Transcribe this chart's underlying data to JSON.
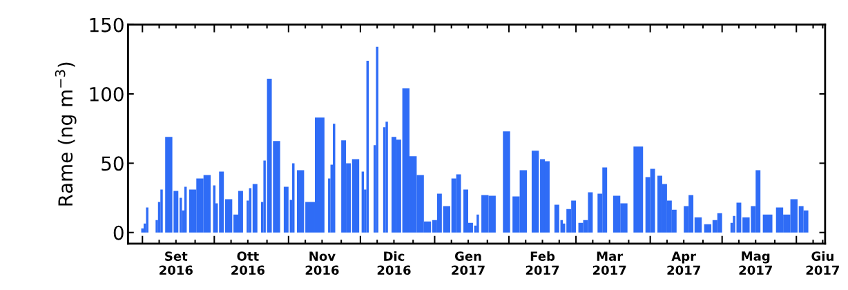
{
  "chart_data": {
    "type": "bar",
    "ylabel": "Rame (ng m$^{−3}$)",
    "color": "#2f6cf6",
    "x": [
      "2016-09-01",
      "2016-09-02",
      "2016-09-03",
      "2016-09-07",
      "2016-09-08",
      "2016-09-09",
      "2016-09-12",
      "2016-09-15",
      "2016-09-17",
      "2016-09-18",
      "2016-09-19",
      "2016-09-22",
      "2016-09-25",
      "2016-09-28",
      "2016-10-01",
      "2016-10-02",
      "2016-10-04",
      "2016-10-07",
      "2016-10-10",
      "2016-10-12",
      "2016-10-15",
      "2016-10-16",
      "2016-10-18",
      "2016-10-21",
      "2016-10-22",
      "2016-10-24",
      "2016-10-27",
      "2016-10-31",
      "2016-11-02",
      "2016-11-03",
      "2016-11-06",
      "2016-11-10",
      "2016-11-14",
      "2016-11-18",
      "2016-11-19",
      "2016-11-20",
      "2016-11-24",
      "2016-11-26",
      "2016-11-29",
      "2016-12-02",
      "2016-12-03",
      "2016-12-04",
      "2016-12-07",
      "2016-12-08",
      "2016-12-11",
      "2016-12-12",
      "2016-12-15",
      "2016-12-17",
      "2016-12-20",
      "2016-12-23",
      "2016-12-26",
      "2016-12-29",
      "2017-01-01",
      "2017-01-03",
      "2017-01-06",
      "2017-01-09",
      "2017-01-11",
      "2017-01-14",
      "2017-01-16",
      "2017-01-18",
      "2017-01-19",
      "2017-01-22",
      "2017-01-25",
      "2017-01-28",
      "2017-01-31",
      "2017-02-04",
      "2017-02-07",
      "2017-02-12",
      "2017-02-15",
      "2017-02-17",
      "2017-02-21",
      "2017-02-23",
      "2017-02-24",
      "2017-02-26",
      "2017-02-28",
      "2017-03-03",
      "2017-03-05",
      "2017-03-07",
      "2017-03-11",
      "2017-03-13",
      "2017-03-18",
      "2017-03-21",
      "2017-03-27",
      "2017-03-31",
      "2017-04-02",
      "2017-04-05",
      "2017-04-07",
      "2017-04-09",
      "2017-04-11",
      "2017-04-16",
      "2017-04-18",
      "2017-04-21",
      "2017-04-25",
      "2017-04-28",
      "2017-04-30",
      "2017-05-05",
      "2017-05-06",
      "2017-05-08",
      "2017-05-11",
      "2017-05-14",
      "2017-05-16",
      "2017-05-20",
      "2017-05-25",
      "2017-05-28",
      "2017-05-31",
      "2017-06-03",
      "2017-06-05"
    ],
    "values": [
      3,
      6.5,
      18,
      9,
      22,
      31,
      69,
      30,
      25,
      16,
      33,
      31,
      39,
      41.5,
      34,
      21,
      44,
      24,
      13,
      30,
      23,
      32,
      35,
      22,
      52,
      111,
      66,
      33,
      23.5,
      50,
      45,
      22,
      83,
      39,
      49,
      78.5,
      66.5,
      50,
      53,
      44,
      31,
      124,
      63,
      134,
      76,
      80,
      69,
      67,
      104,
      55,
      41.5,
      8,
      9,
      28,
      19,
      39,
      42,
      31,
      7,
      5,
      13,
      27,
      26.5,
      null,
      73,
      26,
      45,
      59,
      53,
      51.5,
      20,
      9,
      6.5,
      17,
      23,
      7,
      9,
      29,
      28,
      47,
      26.5,
      21,
      62,
      40,
      46,
      41,
      35,
      23,
      16.5,
      19,
      27,
      11,
      6,
      9,
      14,
      7,
      12,
      21.5,
      11,
      19,
      45,
      13,
      18,
      13,
      24,
      19,
      16
    ],
    "ylim": [
      -8,
      150
    ],
    "yticks": [
      0,
      50,
      100,
      150
    ],
    "xlim": [
      "2016-08-26",
      "2017-06-13"
    ],
    "xticks": [
      {
        "value": "2016-09-01",
        "label": null
      },
      {
        "value": "2016-09-08",
        "label": null
      },
      {
        "value": "2016-09-15",
        "label": "Set\n2016"
      },
      {
        "value": "2016-09-23",
        "label": null
      },
      {
        "value": "2016-10-01",
        "label": null
      },
      {
        "value": "2016-10-08",
        "label": null
      },
      {
        "value": "2016-10-15",
        "label": "Ott\n2016"
      },
      {
        "value": "2016-10-23",
        "label": null
      },
      {
        "value": "2016-11-01",
        "label": null
      },
      {
        "value": "2016-11-08",
        "label": null
      },
      {
        "value": "2016-11-15",
        "label": "Nov\n2016"
      },
      {
        "value": "2016-11-23",
        "label": null
      },
      {
        "value": "2016-12-01",
        "label": null
      },
      {
        "value": "2016-12-08",
        "label": null
      },
      {
        "value": "2016-12-15",
        "label": "Dic\n2016"
      },
      {
        "value": "2016-12-23",
        "label": null
      },
      {
        "value": "2017-01-01",
        "label": null
      },
      {
        "value": "2017-01-08",
        "label": null
      },
      {
        "value": "2017-01-15",
        "label": "Gen\n2017"
      },
      {
        "value": "2017-01-23",
        "label": null
      },
      {
        "value": "2017-02-01",
        "label": null
      },
      {
        "value": "2017-02-08",
        "label": null
      },
      {
        "value": "2017-02-15",
        "label": "Feb\n2017"
      },
      {
        "value": "2017-02-22",
        "label": null
      },
      {
        "value": "2017-03-01",
        "label": null
      },
      {
        "value": "2017-03-08",
        "label": null
      },
      {
        "value": "2017-03-15",
        "label": "Mar\n2017"
      },
      {
        "value": "2017-03-23",
        "label": null
      },
      {
        "value": "2017-04-01",
        "label": null
      },
      {
        "value": "2017-04-08",
        "label": null
      },
      {
        "value": "2017-04-15",
        "label": "Apr\n2017"
      },
      {
        "value": "2017-04-23",
        "label": null
      },
      {
        "value": "2017-05-01",
        "label": null
      },
      {
        "value": "2017-05-08",
        "label": null
      },
      {
        "value": "2017-05-15",
        "label": "Mag\n2017"
      },
      {
        "value": "2017-05-23",
        "label": null
      },
      {
        "value": "2017-06-01",
        "label": null
      },
      {
        "value": "2017-06-08",
        "label": null
      },
      {
        "value": "2017-06-12",
        "label": "Giu\n2017"
      }
    ],
    "grid": false,
    "legend": false
  }
}
